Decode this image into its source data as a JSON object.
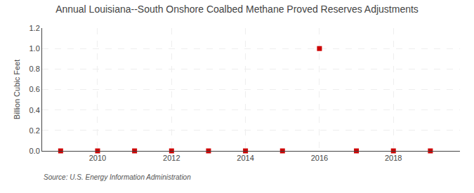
{
  "chart_data": {
    "type": "scatter",
    "title": "Annual Louisiana--South Onshore Coalbed Methane Proved Reserves Adjustments",
    "ylabel": "Billion Cubic Feet",
    "annotations": [
      "Source: U.S. Energy Information Administration"
    ],
    "x": [
      2009,
      2010,
      2011,
      2012,
      2013,
      2014,
      2015,
      2016,
      2017,
      2018,
      2019
    ],
    "values": [
      0.0,
      0.0,
      0.0,
      0.0,
      0.0,
      0.0,
      0.0,
      1.0,
      0.0,
      0.0,
      0.0
    ],
    "color": "#cc0000",
    "marker": "square",
    "xlim": [
      2008.5,
      2019.8
    ],
    "ylim": [
      0.0,
      1.2
    ],
    "xticks": [
      2010,
      2012,
      2014,
      2016,
      2018
    ],
    "yticks": [
      {
        "value": 0.0,
        "label": "0.0"
      },
      0.2,
      0.4,
      0.6,
      0.8,
      {
        "value": 1.0,
        "label": "1.0"
      },
      1.2
    ],
    "grid": true
  }
}
